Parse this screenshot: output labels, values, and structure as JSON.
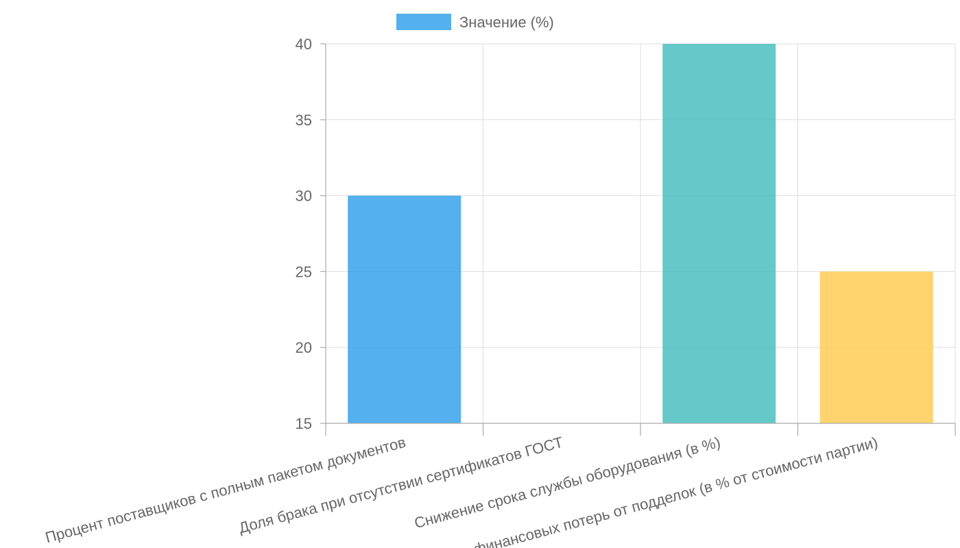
{
  "chart_data": {
    "type": "bar",
    "categories": [
      "Процент поставщиков с полным пакетом документов",
      "Доля брака при отсутствии сертификатов ГОСТ",
      "Снижение срока службы оборудования (в %)",
      "Риск финансовых потерь от подделок (в % от стоимости партии)"
    ],
    "series": [
      {
        "name": "Значение (%)",
        "values": [
          30,
          15,
          40,
          25
        ]
      }
    ],
    "bar_colors": [
      "#36a2eb",
      "#ff6384",
      "#4bc0c0",
      "#ffcd56"
    ],
    "legend_swatch_color": "#36a2eb",
    "ylim": [
      15,
      40
    ],
    "yticks": [
      15,
      20,
      25,
      30,
      35,
      40
    ],
    "grid": true,
    "legend_position": "top"
  }
}
